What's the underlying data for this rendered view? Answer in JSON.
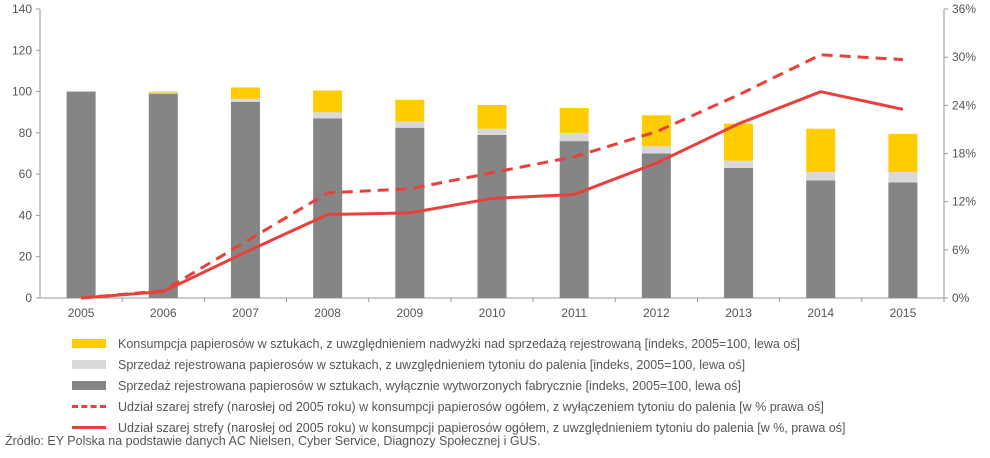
{
  "chart_data": {
    "type": "bar",
    "categories": [
      "2005",
      "2006",
      "2007",
      "2008",
      "2009",
      "2010",
      "2011",
      "2012",
      "2013",
      "2014",
      "2015"
    ],
    "series": [
      {
        "name": "Sprzedaż rejestrowana papierosów w sztukach, wyłącznie wytworzonych fabrycznie [indeks, 2005=100, lewa oś]",
        "kind": "bar-stack",
        "axis": "left",
        "color": "#858585",
        "values": [
          100,
          99,
          95,
          87,
          82.5,
          79,
          76,
          70,
          63,
          57,
          56
        ]
      },
      {
        "name": "Sprzedaż rejestrowana papierosów w sztukach, z uwzględnieniem tytoniu do palenia [indeks, 2005=100, lewa oś]",
        "kind": "bar-stack",
        "axis": "left",
        "color": "#d9d9d9",
        "values": [
          0,
          0.5,
          1.5,
          3,
          3,
          3,
          4,
          3.5,
          3.5,
          4,
          5
        ]
      },
      {
        "name": "Konsumpcja papierosów w sztukach, z uwzględnieniem nadwyżki nad sprzedażą rejestrowaną [indeks, 2005=100, lewa oś]",
        "kind": "bar-stack",
        "axis": "left",
        "color": "#ffcc00",
        "values": [
          0,
          0.5,
          5.5,
          10.5,
          10.5,
          11.5,
          12,
          15,
          18,
          21,
          18.5
        ]
      },
      {
        "name": "Udział szarej strefy (narosłej od 2005 roku) w konsumpcji papierosów ogółem, z wyłączeniem tytoniu do palenia [w % prawa oś]",
        "kind": "line-dashed",
        "axis": "right",
        "color": "#e8413c",
        "values": [
          0,
          0.9,
          7,
          13.1,
          13.6,
          15.6,
          17.6,
          20.7,
          25.3,
          30.3,
          29.7
        ]
      },
      {
        "name": "Udział szarej strefy (narosłej od 2005 roku) w konsumpcji papierosów ogółem, z uwzględnieniem tytoniu do palenia [w %, prawa oś]",
        "kind": "line-solid",
        "axis": "right",
        "color": "#e8413c",
        "values": [
          0,
          0.8,
          5.7,
          10.4,
          10.6,
          12.4,
          12.9,
          16.8,
          21.7,
          25.7,
          23.5
        ]
      }
    ],
    "left_axis": {
      "min": 0,
      "max": 140,
      "ticks": [
        0,
        20,
        40,
        60,
        80,
        100,
        120,
        140
      ]
    },
    "right_axis": {
      "min": 0,
      "max": 36,
      "ticks": [
        "0%",
        "6%",
        "12%",
        "18%",
        "24%",
        "30%",
        "36%"
      ]
    },
    "grid": false,
    "legend_placement": "bottom"
  },
  "legend": [
    {
      "label": "Konsumpcja papierosów w sztukach, z uwzględnieniem nadwyżki nad sprzedażą rejestrowaną [indeks, 2005=100, lewa oś]",
      "style": "bar",
      "color": "#ffcc00"
    },
    {
      "label": "Sprzedaż rejestrowana papierosów w sztukach, z uwzględnieniem tytoniu do palenia [indeks, 2005=100, lewa oś]",
      "style": "bar",
      "color": "#d9d9d9"
    },
    {
      "label": "Sprzedaż rejestrowana papierosów w sztukach, wyłącznie wytworzonych fabrycznie [indeks, 2005=100, lewa oś]",
      "style": "bar",
      "color": "#858585"
    },
    {
      "label": "Udział szarej strefy (narosłej od 2005 roku) w konsumpcji papierosów ogółem, z wyłączeniem tytoniu do palenia [w % prawa oś]",
      "style": "dash",
      "color": "#e8413c"
    },
    {
      "label": "Udział szarej strefy (narosłej od 2005 roku) w konsumpcji papierosów ogółem, z uwzględnieniem tytoniu do palenia [w %, prawa oś]",
      "style": "line",
      "color": "#e8413c"
    }
  ],
  "source": "Źródło: EY Polska na podstawie danych AC Nielsen, Cyber Service, Diagnozy Społecznej i GUS."
}
